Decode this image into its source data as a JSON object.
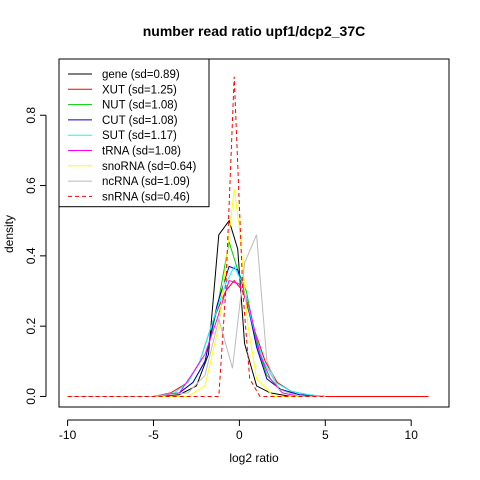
{
  "chart_data": {
    "type": "line",
    "title": "number read ratio upf1/dcp2_37C",
    "xlabel": "log2 ratio",
    "ylabel": "density",
    "xlim": [
      -10.5,
      12.2
    ],
    "ylim": [
      -0.03,
      0.96
    ],
    "x_ticks": [
      -10,
      -5,
      0,
      5,
      10
    ],
    "x_tick_labels": [
      "-10",
      "-5",
      "0",
      "5",
      "10"
    ],
    "y_ticks": [
      0.0,
      0.2,
      0.4,
      0.6,
      0.8
    ],
    "y_tick_labels": [
      "0.0",
      "0.2",
      "0.4",
      "0.6",
      "0.8"
    ],
    "grid": false,
    "legend_position": "top-left",
    "series": [
      {
        "name": "gene (sd=0.89)",
        "color": "#000000",
        "dash": false,
        "points": [
          [
            -10,
            0
          ],
          [
            -5,
            0
          ],
          [
            -3.5,
            0.005
          ],
          [
            -2.5,
            0.03
          ],
          [
            -1.8,
            0.12
          ],
          [
            -1.2,
            0.46
          ],
          [
            -0.6,
            0.5
          ],
          [
            -0.1,
            0.42
          ],
          [
            0.3,
            0.15
          ],
          [
            1,
            0.03
          ],
          [
            1.8,
            0.01
          ],
          [
            3,
            0
          ],
          [
            5,
            0
          ]
        ]
      },
      {
        "name": "XUT (sd=1.25)",
        "color": "#ff0000",
        "dash": false,
        "points": [
          [
            -10,
            0
          ],
          [
            -5,
            0
          ],
          [
            -4,
            0.01
          ],
          [
            -3,
            0.04
          ],
          [
            -2.3,
            0.1
          ],
          [
            -1.5,
            0.22
          ],
          [
            -0.8,
            0.3
          ],
          [
            -0.3,
            0.33
          ],
          [
            0.2,
            0.3
          ],
          [
            0.8,
            0.2
          ],
          [
            1.5,
            0.1
          ],
          [
            2.2,
            0.04
          ],
          [
            3,
            0.015
          ],
          [
            4,
            0.005
          ],
          [
            5,
            0
          ],
          [
            11,
            0
          ]
        ]
      },
      {
        "name": "NUT (sd=1.08)",
        "color": "#00cc00",
        "dash": false,
        "points": [
          [
            -10,
            0
          ],
          [
            -5,
            0
          ],
          [
            -3.5,
            0.01
          ],
          [
            -2.7,
            0.04
          ],
          [
            -2,
            0.1
          ],
          [
            -1.3,
            0.25
          ],
          [
            -0.6,
            0.44
          ],
          [
            -0.1,
            0.36
          ],
          [
            0.4,
            0.3
          ],
          [
            1,
            0.15
          ],
          [
            1.6,
            0.06
          ],
          [
            2.4,
            0.02
          ],
          [
            3.5,
            0.005
          ],
          [
            5,
            0
          ]
        ]
      },
      {
        "name": "CUT (sd=1.08)",
        "color": "#0000cc",
        "dash": false,
        "points": [
          [
            -10,
            0
          ],
          [
            -5,
            0
          ],
          [
            -3.5,
            0.01
          ],
          [
            -2.7,
            0.04
          ],
          [
            -2,
            0.1
          ],
          [
            -1.3,
            0.26
          ],
          [
            -0.6,
            0.37
          ],
          [
            -0.1,
            0.36
          ],
          [
            0.4,
            0.28
          ],
          [
            1,
            0.14
          ],
          [
            1.6,
            0.05
          ],
          [
            2.4,
            0.02
          ],
          [
            3.5,
            0.005
          ],
          [
            5,
            0
          ]
        ]
      },
      {
        "name": "SUT (sd=1.17)",
        "color": "#00ffff",
        "dash": false,
        "points": [
          [
            -10,
            0
          ],
          [
            -5,
            0
          ],
          [
            -3.8,
            0.01
          ],
          [
            -3,
            0.04
          ],
          [
            -2.3,
            0.1
          ],
          [
            -1.5,
            0.22
          ],
          [
            -0.8,
            0.32
          ],
          [
            -0.3,
            0.37
          ],
          [
            0.2,
            0.32
          ],
          [
            0.8,
            0.2
          ],
          [
            1.4,
            0.1
          ],
          [
            2.1,
            0.04
          ],
          [
            3,
            0.015
          ],
          [
            4,
            0.005
          ],
          [
            5,
            0
          ]
        ]
      },
      {
        "name": "tRNA (sd=1.08)",
        "color": "#ff00ff",
        "dash": false,
        "points": [
          [
            -10,
            0
          ],
          [
            -5,
            0
          ],
          [
            -3.5,
            0.01
          ],
          [
            -2.8,
            0.06
          ],
          [
            -2,
            0.12
          ],
          [
            -1.3,
            0.22
          ],
          [
            -0.6,
            0.33
          ],
          [
            0,
            0.32
          ],
          [
            0.6,
            0.25
          ],
          [
            1.2,
            0.12
          ],
          [
            1.8,
            0.05
          ],
          [
            2.5,
            0.01
          ],
          [
            3.5,
            0
          ],
          [
            5,
            0
          ]
        ]
      },
      {
        "name": "snoRNA (sd=0.64)",
        "color": "#ffff00",
        "dash": false,
        "points": [
          [
            -10,
            0
          ],
          [
            -5,
            0
          ],
          [
            -3,
            0
          ],
          [
            -2,
            0.03
          ],
          [
            -1.2,
            0.2
          ],
          [
            -0.6,
            0.46
          ],
          [
            -0.3,
            0.59
          ],
          [
            0,
            0.48
          ],
          [
            0.5,
            0.2
          ],
          [
            1,
            0.05
          ],
          [
            2,
            0
          ],
          [
            5,
            0
          ]
        ]
      },
      {
        "name": "ncRNA (sd=1.09)",
        "color": "#bbbbbb",
        "dash": false,
        "points": [
          [
            -10,
            0
          ],
          [
            -5,
            0
          ],
          [
            -3,
            0.01
          ],
          [
            -2,
            0.06
          ],
          [
            -1.2,
            0.22
          ],
          [
            -0.4,
            0.08
          ],
          [
            0.3,
            0.38
          ],
          [
            1,
            0.46
          ],
          [
            1.6,
            0.1
          ],
          [
            2.3,
            0.02
          ],
          [
            3.5,
            0
          ],
          [
            5,
            0
          ]
        ]
      },
      {
        "name": "snRNA (sd=0.46)",
        "color": "#ff0000",
        "dash": true,
        "points": [
          [
            -10,
            0
          ],
          [
            -5,
            0
          ],
          [
            -1.2,
            0
          ],
          [
            -0.8,
            0.3
          ],
          [
            -0.3,
            0.91
          ],
          [
            0.2,
            0.3
          ],
          [
            0.6,
            0.05
          ],
          [
            1.2,
            0
          ],
          [
            5,
            0
          ],
          [
            11,
            0
          ]
        ]
      }
    ]
  }
}
